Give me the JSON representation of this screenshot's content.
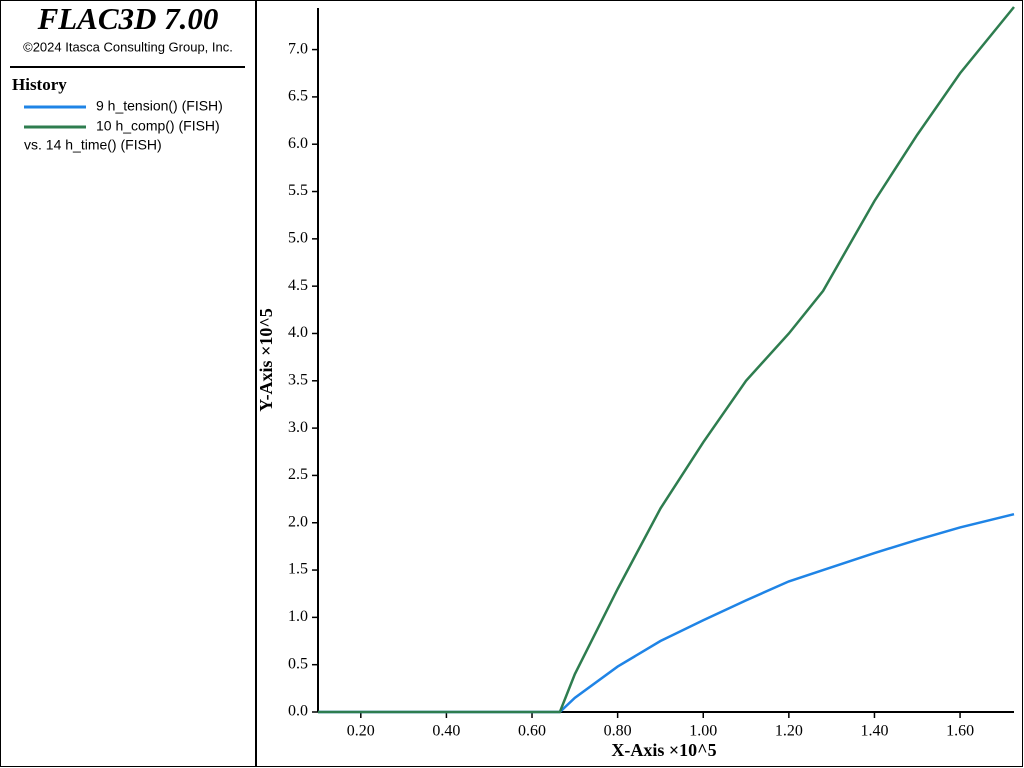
{
  "chart_data": {
    "type": "line",
    "title": "FLAC3D 7.00",
    "subtitle": "©2024 Itasca Consulting Group, Inc.",
    "legend_title": "History",
    "x_series_label": "vs. 14 h_time() (FISH)",
    "xlabel": "X-Axis ×10^5",
    "ylabel": "Y-Axis ×10^5",
    "x": [
      0.1,
      0.2,
      0.3,
      0.4,
      0.5,
      0.6,
      0.665,
      0.7,
      0.8,
      0.9,
      1.0,
      1.1,
      1.2,
      1.28,
      1.4,
      1.5,
      1.6,
      1.726
    ],
    "series": [
      {
        "name": "9 h_tension() (FISH)",
        "color": "#1f84e6",
        "values": [
          0,
          0,
          0,
          0,
          0,
          0,
          0,
          0.15,
          0.48,
          0.75,
          0.97,
          1.18,
          1.38,
          1.5,
          1.68,
          1.82,
          1.95,
          2.09
        ]
      },
      {
        "name": "10 h_comp() (FISH)",
        "color": "#2e7d4f",
        "values": [
          0,
          0,
          0,
          0,
          0,
          0,
          0,
          0.4,
          1.3,
          2.15,
          2.85,
          3.5,
          4.0,
          4.45,
          5.4,
          6.1,
          6.75,
          7.45
        ]
      }
    ],
    "xlim": [
      0.1,
      1.726
    ],
    "ylim": [
      0,
      7.45
    ],
    "xticks": [
      {
        "value": 0.2,
        "label": "0.20"
      },
      {
        "value": 0.4,
        "label": "0.40"
      },
      {
        "value": 0.6,
        "label": "0.60"
      },
      {
        "value": 0.8,
        "label": "0.80"
      },
      {
        "value": 1.0,
        "label": "1.00"
      },
      {
        "value": 1.2,
        "label": "1.20"
      },
      {
        "value": 1.4,
        "label": "1.40"
      },
      {
        "value": 1.6,
        "label": "1.60"
      }
    ],
    "yticks": [
      {
        "value": 0,
        "label": "0.0"
      },
      0.5,
      {
        "value": 1,
        "label": "1.0"
      },
      1.5,
      {
        "value": 2,
        "label": "2.0"
      },
      2.5,
      {
        "value": 3,
        "label": "3.0"
      },
      3.5,
      {
        "value": 4,
        "label": "4.0"
      },
      4.5,
      {
        "value": 5,
        "label": "5.0"
      },
      5.5,
      {
        "value": 6,
        "label": "6.0"
      },
      6.5,
      {
        "value": 7,
        "label": "7.0"
      }
    ]
  }
}
